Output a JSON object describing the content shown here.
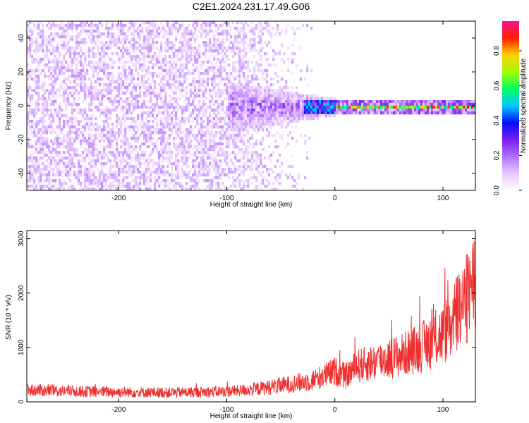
{
  "title": "C2E1.2024.231.17.49.G06",
  "colors": {
    "snr_line": "#f03030",
    "axis": "#000000",
    "colormap": [
      "#ffffff",
      "#e6c8ff",
      "#b070ff",
      "#7a1cf0",
      "#0010ff",
      "#00c8ff",
      "#00ff60",
      "#a0ff00",
      "#ffd000",
      "#ff2000",
      "#ff1090"
    ]
  },
  "chart_data": [
    {
      "type": "heatmap",
      "title": "",
      "xlabel": "Height of straight line (km)",
      "ylabel": "Frequency (Hz)",
      "xlim": [
        -285,
        130
      ],
      "ylim": [
        -50,
        50
      ],
      "xticks": [
        -200,
        -100,
        0,
        100
      ],
      "yticks": [
        -40,
        -20,
        0,
        20,
        40
      ],
      "colorbar": {
        "label": "Normalized spectral amplitude",
        "range": [
          0,
          0.97
        ],
        "ticks": [
          0.0,
          0.2,
          0.4,
          0.6,
          0.8
        ]
      },
      "features": [
        {
          "region": "x from -285 to -100 km",
          "description": "broadband noise, amplitude about 0.05 to 0.15"
        },
        {
          "region": "x from -100 to 0 km",
          "description": "noise fading out above about -30 km, energy concentrating near 0 Hz"
        },
        {
          "region": "x from 0 to 130 km",
          "description": "narrow band at 0 Hz, amplitude 0.5 to 0.97"
        }
      ]
    },
    {
      "type": "line",
      "title": "",
      "xlabel": "Height of straight line (km)",
      "ylabel": "SNR (10 * v/v)",
      "xlim": [
        -285,
        130
      ],
      "ylim": [
        0,
        3150
      ],
      "xticks": [
        -200,
        -100,
        0,
        100
      ],
      "yticks": [
        0,
        1000,
        2000,
        3000
      ],
      "series": [
        {
          "x": [
            -285,
            -250,
            -200,
            -150,
            -100,
            -80,
            -60,
            -40,
            -20,
            -10,
            0,
            10,
            20,
            40,
            60,
            80,
            100,
            110,
            120,
            130
          ],
          "y": [
            220,
            200,
            180,
            170,
            190,
            220,
            270,
            330,
            400,
            480,
            560,
            470,
            650,
            750,
            850,
            1000,
            1250,
            1500,
            1800,
            2250
          ]
        }
      ]
    }
  ]
}
